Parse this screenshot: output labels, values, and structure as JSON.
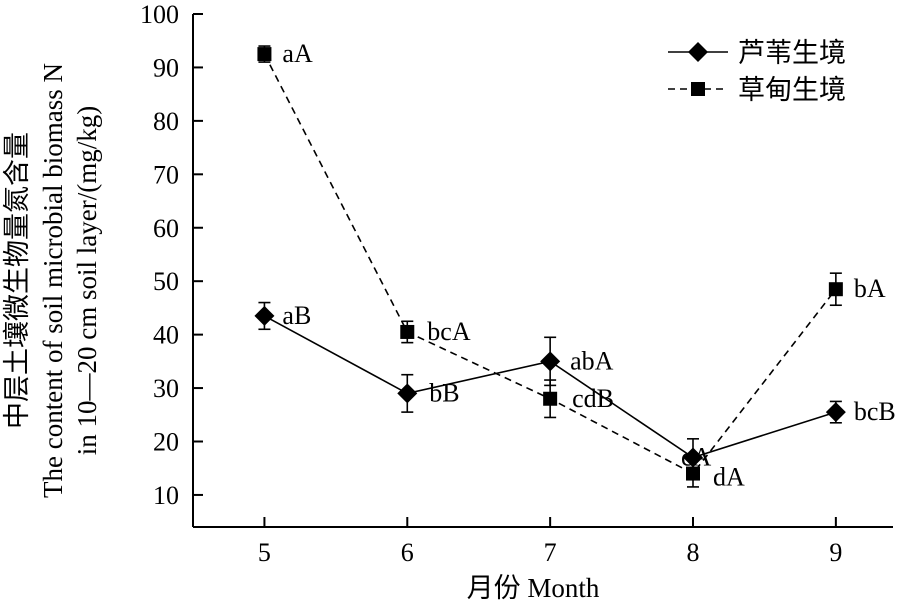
{
  "chart_data": {
    "type": "line",
    "x": [
      5,
      6,
      7,
      8,
      9
    ],
    "xlabel": "月份 Month",
    "ylabel_lines": [
      "中层土壤微生物量氮含量",
      "The content of soil microbial biomass N",
      "in 10—20 cm soil layer/(mg/kg)"
    ],
    "xlim": [
      4.5,
      9.4
    ],
    "ylim": [
      4,
      100
    ],
    "xticks": [
      "5",
      "6",
      "7",
      "8",
      "9"
    ],
    "yticks": [
      "10",
      "20",
      "30",
      "40",
      "50",
      "60",
      "70",
      "80",
      "90",
      "100"
    ],
    "grid": false,
    "legend_position": "top-right",
    "series": [
      {
        "name": "芦苇生境",
        "marker": "diamond",
        "line": "solid",
        "color": "#000000",
        "values": [
          43.5,
          29,
          35,
          17,
          25.5
        ],
        "errors": [
          2.5,
          3.5,
          4.5,
          3.5,
          2.0
        ],
        "labels": [
          "aB",
          "bB",
          "abA",
          "cA",
          "bcB"
        ]
      },
      {
        "name": "草甸生境",
        "marker": "square",
        "line": "dashed",
        "color": "#000000",
        "values": [
          92.5,
          40.5,
          28,
          14,
          48.5
        ],
        "errors": [
          1.5,
          2.0,
          3.5,
          2.5,
          3.0
        ],
        "labels": [
          "aA",
          "bcA",
          "cdB",
          "dA",
          "bA"
        ]
      }
    ]
  }
}
